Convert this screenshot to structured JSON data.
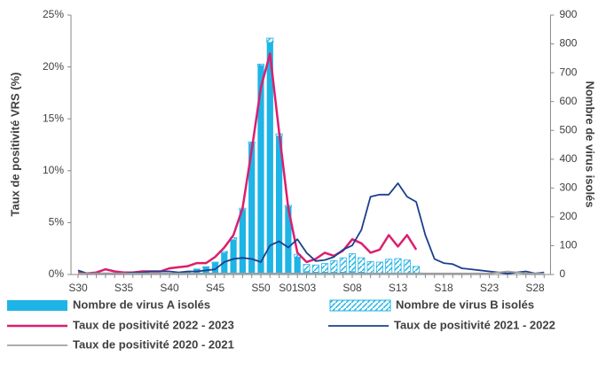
{
  "chart_data": {
    "type": "combo",
    "y_label": "Taux de positivité VRS (%)",
    "y2_label": "Nombre de virus isolés",
    "categories": [
      "S30",
      null,
      null,
      null,
      null,
      "S35",
      null,
      null,
      null,
      null,
      "S40",
      null,
      null,
      null,
      null,
      "S45",
      null,
      null,
      null,
      null,
      "S50",
      null,
      null,
      "S01",
      null,
      "S03",
      null,
      null,
      null,
      null,
      "S08",
      null,
      null,
      null,
      null,
      "S13",
      null,
      null,
      null,
      null,
      "S18",
      null,
      null,
      null,
      null,
      "S23",
      null,
      null,
      null,
      null,
      "S28",
      null
    ],
    "ylim": [
      0,
      25
    ],
    "yticks": [
      {
        "value": 0,
        "label": "0%"
      },
      {
        "value": 5,
        "label": "5%"
      },
      {
        "value": 10,
        "label": "10%"
      },
      {
        "value": 15,
        "label": "15%"
      },
      {
        "value": 20,
        "label": "20%"
      },
      {
        "value": 25,
        "label": "25%"
      }
    ],
    "y2lim": [
      0,
      900
    ],
    "y2ticks": [
      0,
      100,
      200,
      300,
      400,
      500,
      600,
      700,
      800,
      900
    ],
    "series": [
      {
        "name": "Nombre de virus A isolés",
        "type": "bar",
        "axis": "y2",
        "color": "#1eb4e6",
        "values": [
          0,
          0,
          0,
          0,
          0,
          0,
          0,
          0,
          0,
          2,
          3,
          6,
          10,
          18,
          25,
          40,
          75,
          120,
          225,
          455,
          725,
          805,
          480,
          235,
          60,
          10,
          8,
          8,
          8,
          8,
          10,
          8,
          5,
          5,
          5,
          5,
          5,
          3,
          0,
          0,
          0,
          0,
          0,
          0,
          0,
          0,
          0,
          0,
          0,
          0,
          0,
          0
        ]
      },
      {
        "name": "Nombre de virus B isolés",
        "type": "bar",
        "axis": "y2",
        "color": "#1eb4e6",
        "pattern": "hatch",
        "values": [
          0,
          0,
          0,
          0,
          0,
          0,
          0,
          0,
          0,
          0,
          0,
          0,
          0,
          1,
          2,
          3,
          5,
          8,
          5,
          5,
          5,
          15,
          8,
          5,
          10,
          25,
          25,
          30,
          40,
          50,
          62,
          50,
          40,
          38,
          48,
          50,
          45,
          25,
          0,
          0,
          0,
          0,
          0,
          0,
          0,
          0,
          0,
          0,
          0,
          0,
          0,
          0
        ]
      },
      {
        "name": "Taux de positivité 2022 - 2023",
        "type": "line",
        "color": "#dc1e6e",
        "width": 2.5,
        "values": [
          0.2,
          0.1,
          0.2,
          0.5,
          0.3,
          0.2,
          0.2,
          0.3,
          0.3,
          0.3,
          0.6,
          0.7,
          0.8,
          1.1,
          1.1,
          1.7,
          2.6,
          3.8,
          6.4,
          12,
          18,
          21.3,
          13.7,
          6.4,
          2.1,
          1.2,
          1.5,
          2.1,
          1.8,
          2.3,
          3.4,
          3.0,
          2.1,
          2.4,
          3.8,
          2.7,
          3.8,
          2.4,
          null,
          null,
          null,
          null,
          null,
          null,
          null,
          null,
          null,
          null,
          null,
          null,
          null,
          null
        ]
      },
      {
        "name": "Taux de positivité 2021 - 2022",
        "type": "line",
        "color": "#1c3f8e",
        "width": 1.8,
        "values": [
          0.4,
          0.1,
          0.1,
          0.1,
          0.1,
          0.1,
          0.2,
          0.2,
          0.3,
          0.3,
          0.3,
          0.2,
          0.3,
          0.3,
          0.4,
          0.5,
          1.2,
          1.5,
          1.6,
          1.5,
          1.2,
          2.8,
          3.2,
          2.6,
          3.4,
          2.1,
          1.3,
          1.4,
          1.7,
          2.4,
          2.8,
          4.3,
          7.5,
          7.7,
          7.7,
          8.8,
          7.5,
          7.0,
          3.8,
          1.5,
          1.1,
          1.0,
          0.6,
          0.5,
          0.4,
          0.3,
          0.2,
          0.1,
          0.2,
          0.3,
          0.1,
          0.2
        ]
      },
      {
        "name": "Taux de positivité 2020 - 2021",
        "type": "line",
        "color": "#a0a0a0",
        "width": 1.8,
        "values": [
          0.1,
          0.1,
          0.1,
          0.1,
          0.1,
          0.1,
          0.1,
          0.1,
          0.1,
          0.1,
          0.1,
          0.1,
          0.1,
          0.1,
          0.1,
          0.1,
          0.1,
          0.1,
          0.1,
          0.1,
          0.1,
          0.1,
          0.1,
          0.1,
          0.1,
          0.1,
          0.1,
          0.1,
          0.1,
          0.1,
          0.1,
          0.1,
          0.1,
          0.1,
          0.1,
          0.1,
          0.1,
          0.1,
          0.1,
          0.1,
          0.1,
          0.1,
          0.1,
          0.1,
          0.1,
          0.1,
          0.2,
          0.3,
          0.2,
          0.1,
          0.1,
          0.1
        ]
      }
    ]
  }
}
